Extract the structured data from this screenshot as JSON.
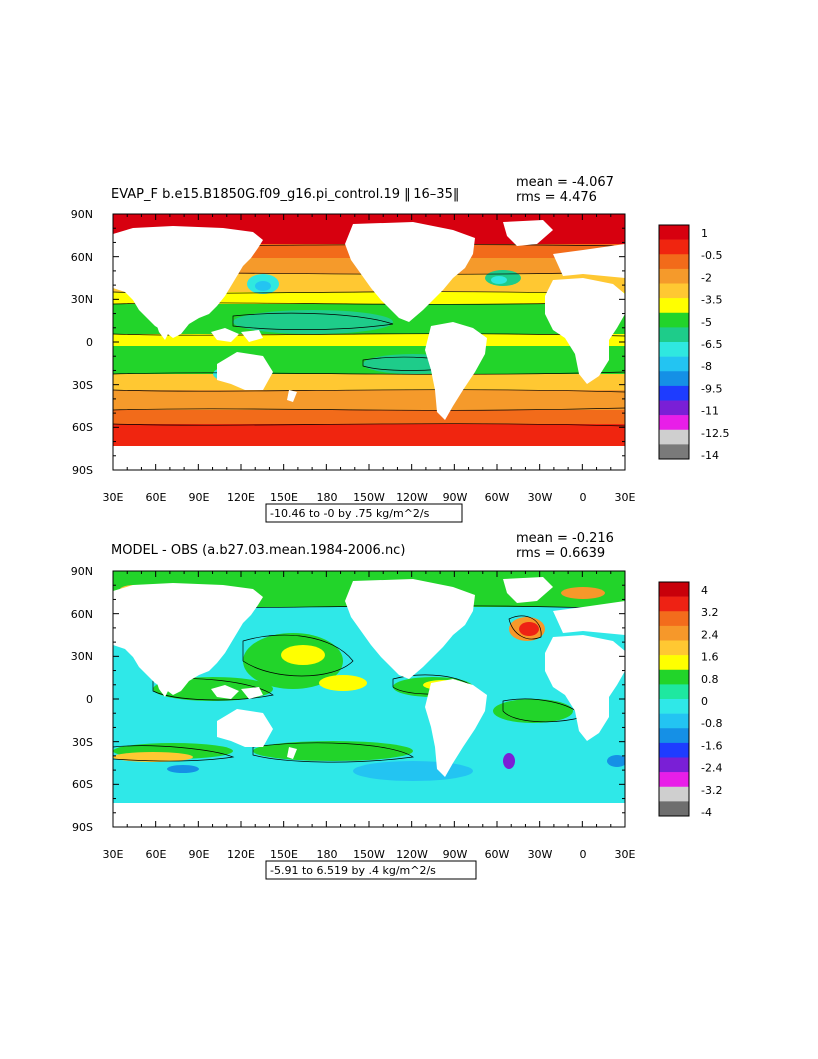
{
  "panels": [
    {
      "id": "top",
      "title": "EVAP_F b.e15.B1850G.f09_g16.pi_control.19 ‖ 16–35‖",
      "mean": "mean = -4.067",
      "rms": "rms = 4.476",
      "range_label": "-10.46 to -0 by .75 kg/m^2/s",
      "colorbar": {
        "labels": [
          "1",
          "-0.5",
          "-2",
          "-3.5",
          "-5",
          "-6.5",
          "-8",
          "-9.5",
          "-11",
          "-12.5",
          "-14"
        ],
        "colors": [
          "#d7000f",
          "#f0250f",
          "#f26b1a",
          "#f59a2b",
          "#ffc832",
          "#ffff00",
          "#22d42a",
          "#1ecc8a",
          "#2fe8e0",
          "#23c4f2",
          "#1590e6",
          "#1e3cff",
          "#7a1fd6",
          "#e81ee8",
          "#cfcfcf",
          "#7a7a7a"
        ]
      }
    },
    {
      "id": "bottom",
      "title": "MODEL - OBS (a.b27.03.mean.1984-2006.nc)",
      "mean": "mean = -0.216",
      "rms": "rms = 0.6639",
      "range_label": "-5.91 to 6.519 by .4 kg/m^2/s",
      "colorbar": {
        "labels": [
          "4",
          "3.2",
          "2.4",
          "1.6",
          "0.8",
          "0",
          "-0.8",
          "-1.6",
          "-2.4",
          "-3.2",
          "-4"
        ],
        "colors": [
          "#c8000a",
          "#ee2214",
          "#f36c1c",
          "#f6982a",
          "#ffc832",
          "#ffff00",
          "#22d42a",
          "#1ee8a0",
          "#2fe8e8",
          "#23c4f2",
          "#1590e6",
          "#1e3cff",
          "#7a1fd6",
          "#e81ee8",
          "#cfcfcf",
          "#6e6e6e"
        ]
      }
    }
  ],
  "axes": {
    "lat_labels": [
      "90N",
      "60N",
      "30N",
      "0",
      "30S",
      "60S",
      "90S"
    ],
    "lon_labels": [
      "30E",
      "60E",
      "90E",
      "120E",
      "150E",
      "180",
      "150W",
      "120W",
      "90W",
      "60W",
      "30W",
      "0",
      "30E"
    ]
  }
}
